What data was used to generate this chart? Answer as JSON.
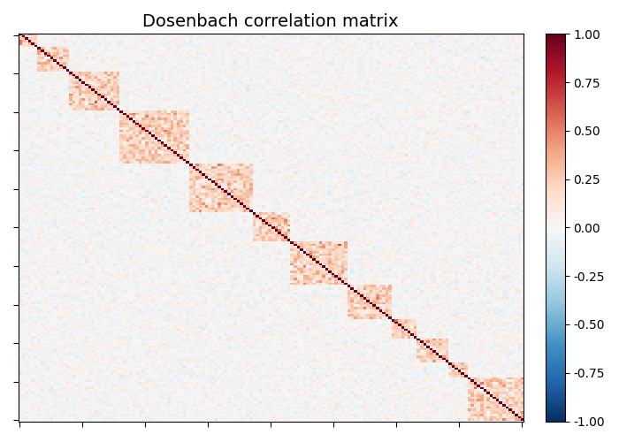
{
  "title": "Dosenbach correlation matrix",
  "cmap": "RdBu_r",
  "vmin": -1.0,
  "vmax": 1.0,
  "colorbar_ticks": [
    1.0,
    0.75,
    0.5,
    0.25,
    0.0,
    -0.25,
    -0.5,
    -0.75,
    -1.0
  ],
  "figsize": [
    7.0,
    5.0
  ],
  "dpi": 100,
  "background_color": "#ffffff",
  "title_fontsize": 14,
  "random_seed": 0,
  "n_xticks": 9,
  "n_yticks": 11,
  "noise_std": 0.07,
  "within_net_corr_mean": 0.22,
  "within_net_corr_std": 0.1,
  "network_sizes": [
    6,
    10,
    16,
    22,
    20,
    12,
    18,
    14,
    8,
    10,
    6,
    18
  ]
}
